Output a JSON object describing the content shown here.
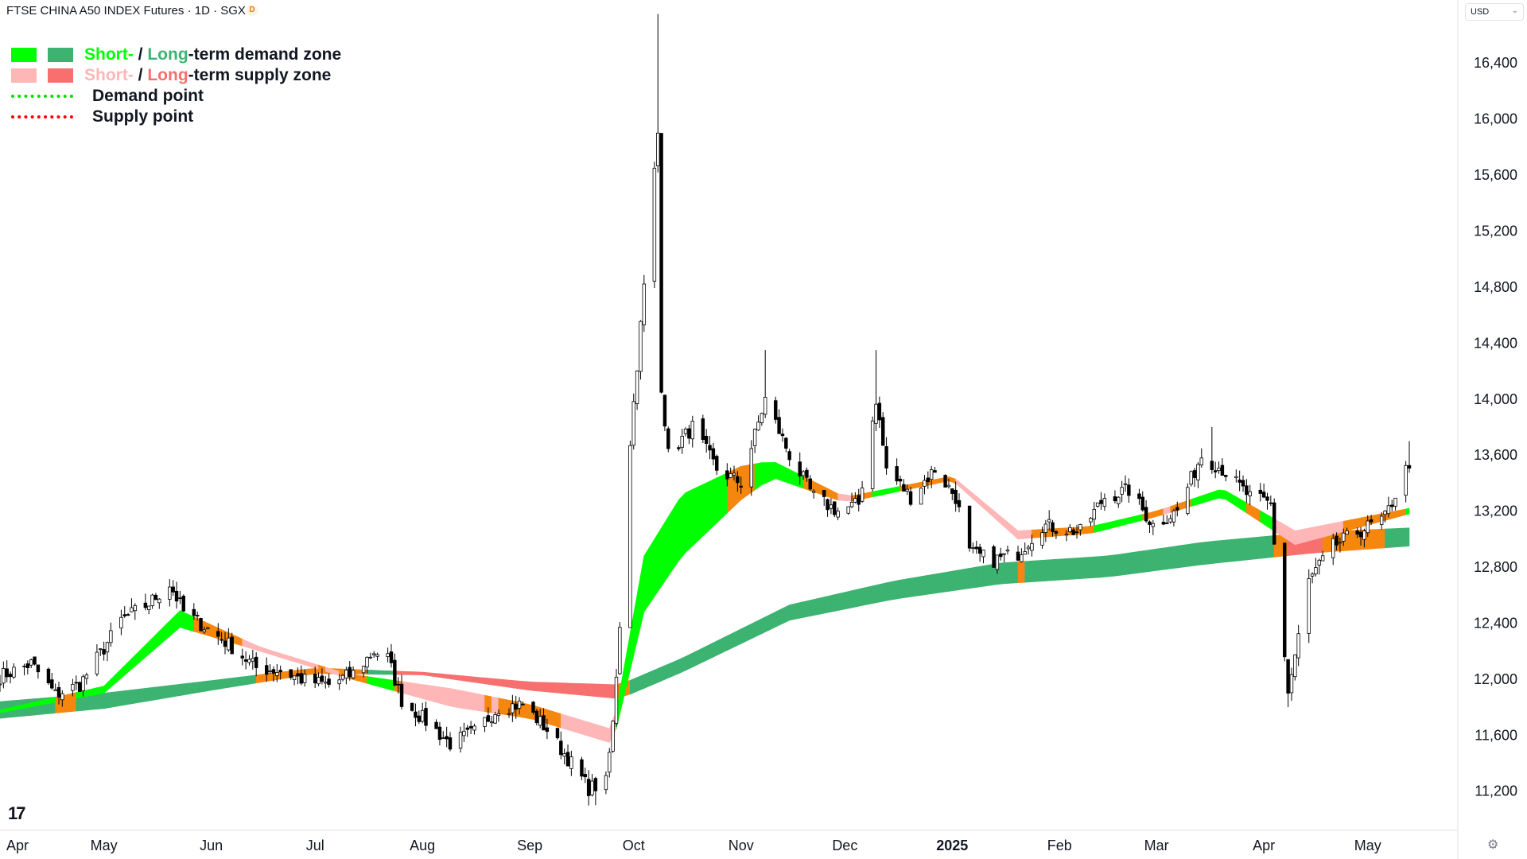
{
  "header": {
    "title": "FTSE CHINA A50 INDEX Futures · 1D · SGX",
    "badge": "D"
  },
  "currency": {
    "label": "USD",
    "chevron": "⌄"
  },
  "legend": {
    "demand_zone": {
      "short": "Short-",
      "sep": " / ",
      "long": "Long",
      "suffix": "-term demand zone"
    },
    "supply_zone": {
      "short": "Short-",
      "sep": " / ",
      "long": "Long",
      "suffix": "-term supply zone"
    },
    "demand_point": "Demand point",
    "supply_point": "Supply point"
  },
  "colors": {
    "short_demand": "#00ff00",
    "long_demand": "#3cb371",
    "short_supply": "#ffb6b6",
    "long_supply": "#f76f6f",
    "neutral_zone": "#f5870f",
    "demand_point": "#00e000",
    "supply_point": "#ff0000",
    "text": "#131722",
    "axis_text": "#131722",
    "axis_line": "#e0e3eb"
  },
  "footer": {
    "logo": "17",
    "settings_icon": "gear-icon"
  },
  "chart_data": {
    "type": "candlestick",
    "title": "FTSE CHINA A50 INDEX Futures · 1D · SGX",
    "x_axis_labels": [
      "Apr",
      "May",
      "Jun",
      "Jul",
      "Aug",
      "Sep",
      "Oct",
      "Nov",
      "Dec",
      "2025",
      "Feb",
      "Mar",
      "Apr",
      "May"
    ],
    "x_range": [
      "2024-04-01",
      "2025-05-13"
    ],
    "y_ticks": [
      11200,
      11600,
      12000,
      12400,
      12800,
      13200,
      13600,
      14000,
      14400,
      14800,
      15200,
      15600,
      16000,
      16400
    ],
    "y_range": [
      10920,
      16850
    ],
    "grid": false,
    "legend_position": "top-left",
    "price_path": [
      [
        "2024-04-01",
        12020
      ],
      [
        "2024-04-10",
        12110
      ],
      [
        "2024-04-17",
        11890
      ],
      [
        "2024-04-24",
        11960
      ],
      [
        "2024-05-01",
        12220
      ],
      [
        "2024-05-06",
        12420
      ],
      [
        "2024-05-14",
        12540
      ],
      [
        "2024-05-20",
        12680
      ],
      [
        "2024-05-24",
        12480
      ],
      [
        "2024-05-31",
        12360
      ],
      [
        "2024-06-07",
        12230
      ],
      [
        "2024-06-14",
        12080
      ],
      [
        "2024-06-21",
        12060
      ],
      [
        "2024-06-28",
        11990
      ],
      [
        "2024-07-05",
        11960
      ],
      [
        "2024-07-12",
        12040
      ],
      [
        "2024-07-18",
        12200
      ],
      [
        "2024-07-22",
        12150
      ],
      [
        "2024-07-26",
        11850
      ],
      [
        "2024-08-02",
        11700
      ],
      [
        "2024-08-09",
        11540
      ],
      [
        "2024-08-16",
        11620
      ],
      [
        "2024-08-23",
        11800
      ],
      [
        "2024-08-30",
        11820
      ],
      [
        "2024-09-06",
        11640
      ],
      [
        "2024-09-13",
        11400
      ],
      [
        "2024-09-18",
        11220
      ],
      [
        "2024-09-23",
        11260
      ],
      [
        "2024-09-25",
        11680
      ],
      [
        "2024-09-27",
        12400
      ],
      [
        "2024-09-30",
        13700
      ],
      [
        "2024-10-08",
        15900
      ],
      [
        "2024-10-09",
        14100
      ],
      [
        "2024-10-11",
        13600
      ],
      [
        "2024-10-18",
        13800
      ],
      [
        "2024-10-25",
        13500
      ],
      [
        "2024-11-01",
        13400
      ],
      [
        "2024-11-08",
        14000
      ],
      [
        "2024-11-15",
        13600
      ],
      [
        "2024-11-22",
        13300
      ],
      [
        "2024-11-29",
        13200
      ],
      [
        "2024-12-05",
        13250
      ],
      [
        "2024-12-10",
        14000
      ],
      [
        "2024-12-13",
        13500
      ],
      [
        "2024-12-20",
        13300
      ],
      [
        "2024-12-27",
        13500
      ],
      [
        "2025-01-02",
        13300
      ],
      [
        "2025-01-06",
        12900
      ],
      [
        "2025-01-13",
        12850
      ],
      [
        "2025-01-20",
        12900
      ],
      [
        "2025-01-27",
        13100
      ],
      [
        "2025-02-07",
        13050
      ],
      [
        "2025-02-14",
        13300
      ],
      [
        "2025-02-21",
        13350
      ],
      [
        "2025-02-28",
        13100
      ],
      [
        "2025-03-07",
        13200
      ],
      [
        "2025-03-14",
        13600
      ],
      [
        "2025-03-20",
        13500
      ],
      [
        "2025-03-28",
        13300
      ],
      [
        "2025-04-03",
        13250
      ],
      [
        "2025-04-08",
        11900
      ],
      [
        "2025-04-14",
        12700
      ],
      [
        "2025-04-21",
        12950
      ],
      [
        "2025-04-28",
        13050
      ],
      [
        "2025-05-06",
        13150
      ],
      [
        "2025-05-13",
        13550
      ]
    ],
    "spike_highs": [
      [
        "2024-10-08",
        16750
      ],
      [
        "2024-11-08",
        14350
      ],
      [
        "2024-12-10",
        14350
      ],
      [
        "2025-03-17",
        13800
      ],
      [
        "2025-05-13",
        13700
      ]
    ],
    "spike_lows": [
      [
        "2024-09-20",
        11100
      ],
      [
        "2025-04-08",
        11800
      ]
    ],
    "zones": {
      "long_term": [
        [
          "2024-04-01",
          11840,
          11720
        ],
        [
          "2024-05-01",
          11900,
          11790
        ],
        [
          "2024-06-01",
          11990,
          11920
        ],
        [
          "2024-07-01",
          12080,
          12040
        ],
        [
          "2024-08-01",
          12050,
          12030
        ],
        [
          "2024-09-01",
          11980,
          11920
        ],
        [
          "2024-09-27",
          11960,
          11860
        ],
        [
          "2024-10-15",
          12150,
          12050
        ],
        [
          "2024-11-15",
          12530,
          12420
        ],
        [
          "2024-12-15",
          12700,
          12570
        ],
        [
          "2025-01-15",
          12830,
          12680
        ],
        [
          "2025-02-15",
          12880,
          12730
        ],
        [
          "2025-03-15",
          12980,
          12820
        ],
        [
          "2025-04-15",
          13050,
          12900
        ],
        [
          "2025-05-13",
          13080,
          12950
        ]
      ],
      "short_term": [
        [
          "2024-04-01",
          11780,
          11760
        ],
        [
          "2024-05-01",
          11950,
          11900
        ],
        [
          "2024-05-23",
          12490,
          12370
        ],
        [
          "2024-06-15",
          12230,
          12200
        ],
        [
          "2024-07-10",
          12040,
          12010
        ],
        [
          "2024-08-10",
          11930,
          11800
        ],
        [
          "2024-09-01",
          11820,
          11720
        ],
        [
          "2024-09-25",
          11640,
          11540
        ],
        [
          "2024-10-04",
          12880,
          12480
        ],
        [
          "2024-10-15",
          13320,
          12880
        ],
        [
          "2024-11-01",
          13520,
          13280
        ],
        [
          "2024-11-10",
          13560,
          13440
        ],
        [
          "2024-12-01",
          13300,
          13260
        ],
        [
          "2025-01-01",
          13450,
          13420
        ],
        [
          "2025-01-20",
          13060,
          13000
        ],
        [
          "2025-02-10",
          13090,
          13040
        ],
        [
          "2025-03-01",
          13200,
          13160
        ],
        [
          "2025-03-20",
          13360,
          13300
        ],
        [
          "2025-04-10",
          13060,
          12960
        ],
        [
          "2025-05-13",
          13220,
          13180
        ]
      ]
    }
  }
}
